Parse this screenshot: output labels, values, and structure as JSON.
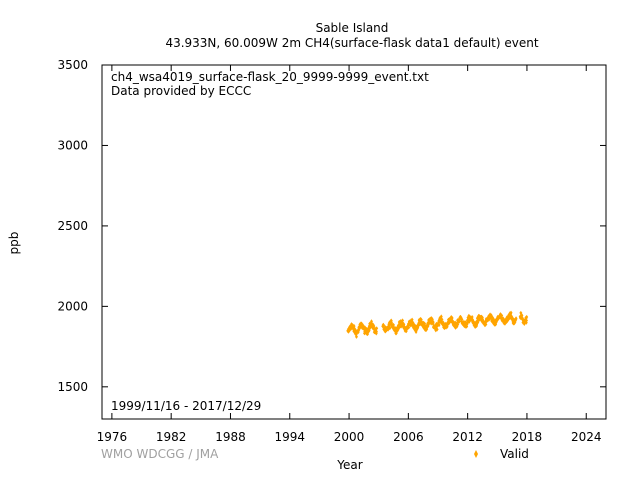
{
  "chart_data": {
    "type": "scatter",
    "title_line1": "Sable Island",
    "title_line2": "43.933N, 60.009W 2m    CH4(surface-flask data1 default) event",
    "filename": "ch4_wsa4019_surface-flask_20_9999-9999_event.txt",
    "provider": "Data provided by ECCC",
    "date_range": "1999/11/16 - 2017/12/29",
    "xlabel": "Year",
    "ylabel": "ppb",
    "credit": "WMO WDCGG / JMA",
    "xlim": [
      1975,
      2026
    ],
    "ylim": [
      1300,
      3500
    ],
    "x_ticks": [
      "1976",
      "1982",
      "1988",
      "1994",
      "2000",
      "2006",
      "2012",
      "2018",
      "2024"
    ],
    "y_ticks": [
      "1500",
      "2000",
      "2500",
      "3000",
      "3500"
    ],
    "grid": false,
    "legend_position": "bottom-right",
    "series": [
      {
        "name": "Valid",
        "color": "#FFA500",
        "data_span": [
          1999.87,
          2017.99
        ],
        "trend": {
          "start_year": 2000.0,
          "start_ppb": 1855,
          "end_year": 2018.0,
          "end_ppb": 1930
        },
        "seasonal_amplitude_ppb": 22,
        "scatter_ppb": 18,
        "gaps": [
          [
            2002.8,
            2003.4
          ],
          [
            2016.9,
            2017.3
          ]
        ]
      }
    ]
  }
}
